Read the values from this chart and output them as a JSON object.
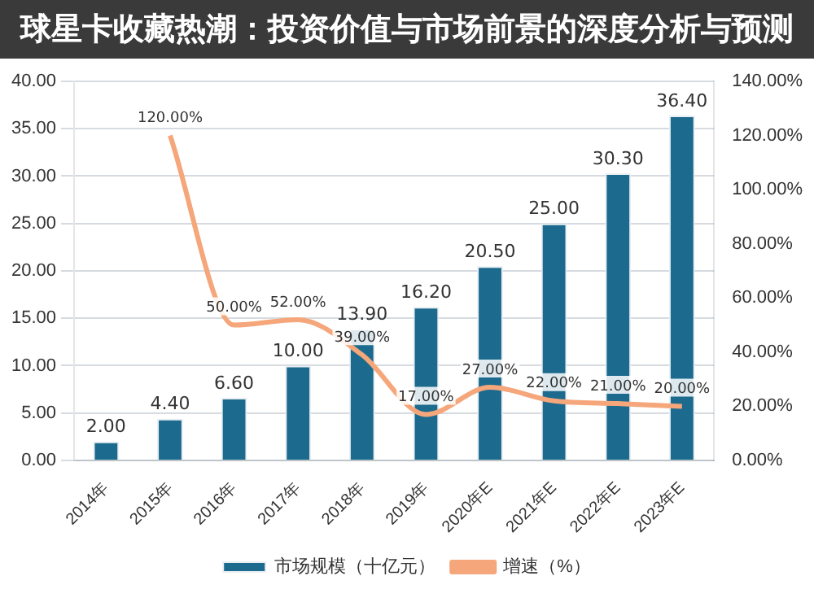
{
  "chart_data": {
    "type": "bar",
    "title": "球星卡收藏热潮：投资价值与市场前景的深度分析与预测",
    "categories": [
      "2014年",
      "2015年",
      "2016年",
      "2017年",
      "2018年",
      "2019年",
      "2020年E",
      "2021年E",
      "2022年E",
      "2023年E"
    ],
    "series": [
      {
        "name": "市场规模（十亿元）",
        "color": "#1c6a8e",
        "values": [
          2.0,
          4.4,
          6.6,
          10.0,
          13.9,
          16.2,
          20.5,
          25.0,
          30.3,
          36.4
        ],
        "value_labels": [
          "2.00",
          "4.40",
          "6.60",
          "10.00",
          "13.90",
          "16.20",
          "20.50",
          "25.00",
          "30.30",
          "36.40"
        ]
      },
      {
        "name": "增速（%）",
        "type": "line",
        "axis": "y2",
        "color": "#f5a67a",
        "values": [
          null,
          120,
          50,
          52,
          39,
          17,
          27,
          22,
          21,
          20
        ],
        "value_labels": [
          null,
          "120.00%",
          "50.00%",
          "52.00%",
          "39.00%",
          "17.00%",
          "27.00%",
          "22.00%",
          "21.00%",
          "20.00%"
        ]
      }
    ],
    "ylim": [
      0,
      40
    ],
    "yticks": [
      {
        "value": 0,
        "label": "0.00"
      },
      {
        "value": 5,
        "label": "5.00"
      },
      {
        "value": 10,
        "label": "10.00"
      },
      {
        "value": 15,
        "label": "15.00"
      },
      {
        "value": 20,
        "label": "20.00"
      },
      {
        "value": 25,
        "label": "25.00"
      },
      {
        "value": 30,
        "label": "30.00"
      },
      {
        "value": 35,
        "label": "35.00"
      },
      {
        "value": 40,
        "label": "40.00"
      }
    ],
    "y2lim": [
      0,
      140
    ],
    "y2ticks": [
      {
        "value": 0,
        "label": "0.00%"
      },
      {
        "value": 20,
        "label": "20.00%"
      },
      {
        "value": 40,
        "label": "40.00%"
      },
      {
        "value": 60,
        "label": "60.00%"
      },
      {
        "value": 80,
        "label": "80.00%"
      },
      {
        "value": 100,
        "label": "100.00%"
      },
      {
        "value": 120,
        "label": "120.00%"
      },
      {
        "value": 140,
        "label": "140.00%"
      }
    ],
    "grid": "y",
    "legend": "bottom",
    "marker": "none",
    "line_style": "solid"
  }
}
